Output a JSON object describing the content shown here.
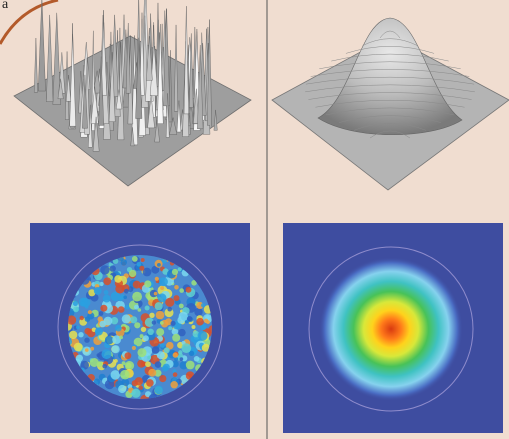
{
  "corner_label": "a",
  "colors": {
    "background": "#f0ddd0",
    "divider": "#555555",
    "corner_arc": "#b35a2a",
    "map_background": "#3e4da0",
    "aperture_ring": "#8f8ccc"
  },
  "panels": [
    {
      "name": "speckled-beam-surface-plot",
      "kind": "surface",
      "profile": "speckle"
    },
    {
      "name": "gaussian-beam-surface-plot",
      "kind": "surface",
      "profile": "gaussian"
    },
    {
      "name": "speckled-beam-intensity-map",
      "kind": "heatmap",
      "profile": "speckle",
      "colormap": "jet"
    },
    {
      "name": "gaussian-beam-intensity-map",
      "kind": "heatmap",
      "profile": "gaussian",
      "colormap": "jet"
    }
  ]
}
